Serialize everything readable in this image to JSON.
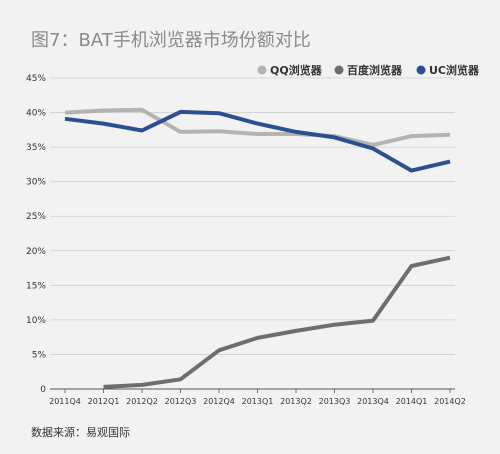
{
  "chart_data": {
    "type": "line",
    "title": "图7：BAT手机浏览器市场份额对比",
    "source_note": "数据来源：易观国际",
    "categories": [
      "2011Q4",
      "2012Q1",
      "2012Q2",
      "2012Q3",
      "2012Q4",
      "2013Q1",
      "2013Q2",
      "2013Q3",
      "2013Q4",
      "2014Q1",
      "2014Q2"
    ],
    "y_tick_labels": [
      "0",
      "5%",
      "10%",
      "15%",
      "20%",
      "25%",
      "30%",
      "35%",
      "40%",
      "45%"
    ],
    "ylim": [
      0,
      45
    ],
    "legend_position": "top-right",
    "grid": "horizontal",
    "series": [
      {
        "name": "QQ浏览器",
        "color": "#b3b3b3",
        "values": [
          40.0,
          40.3,
          40.4,
          37.2,
          37.3,
          36.9,
          36.9,
          36.6,
          35.3,
          36.6,
          36.8
        ]
      },
      {
        "name": "百度浏览器",
        "color": "#6e6e6e",
        "values": [
          null,
          0.3,
          0.6,
          1.4,
          5.6,
          7.4,
          8.4,
          9.3,
          9.9,
          17.8,
          19.0
        ]
      },
      {
        "name": "UC浏览器",
        "color": "#2c4f8f",
        "values": [
          39.1,
          38.4,
          37.4,
          40.1,
          39.9,
          38.4,
          37.2,
          36.4,
          34.8,
          31.6,
          32.9
        ]
      }
    ]
  }
}
